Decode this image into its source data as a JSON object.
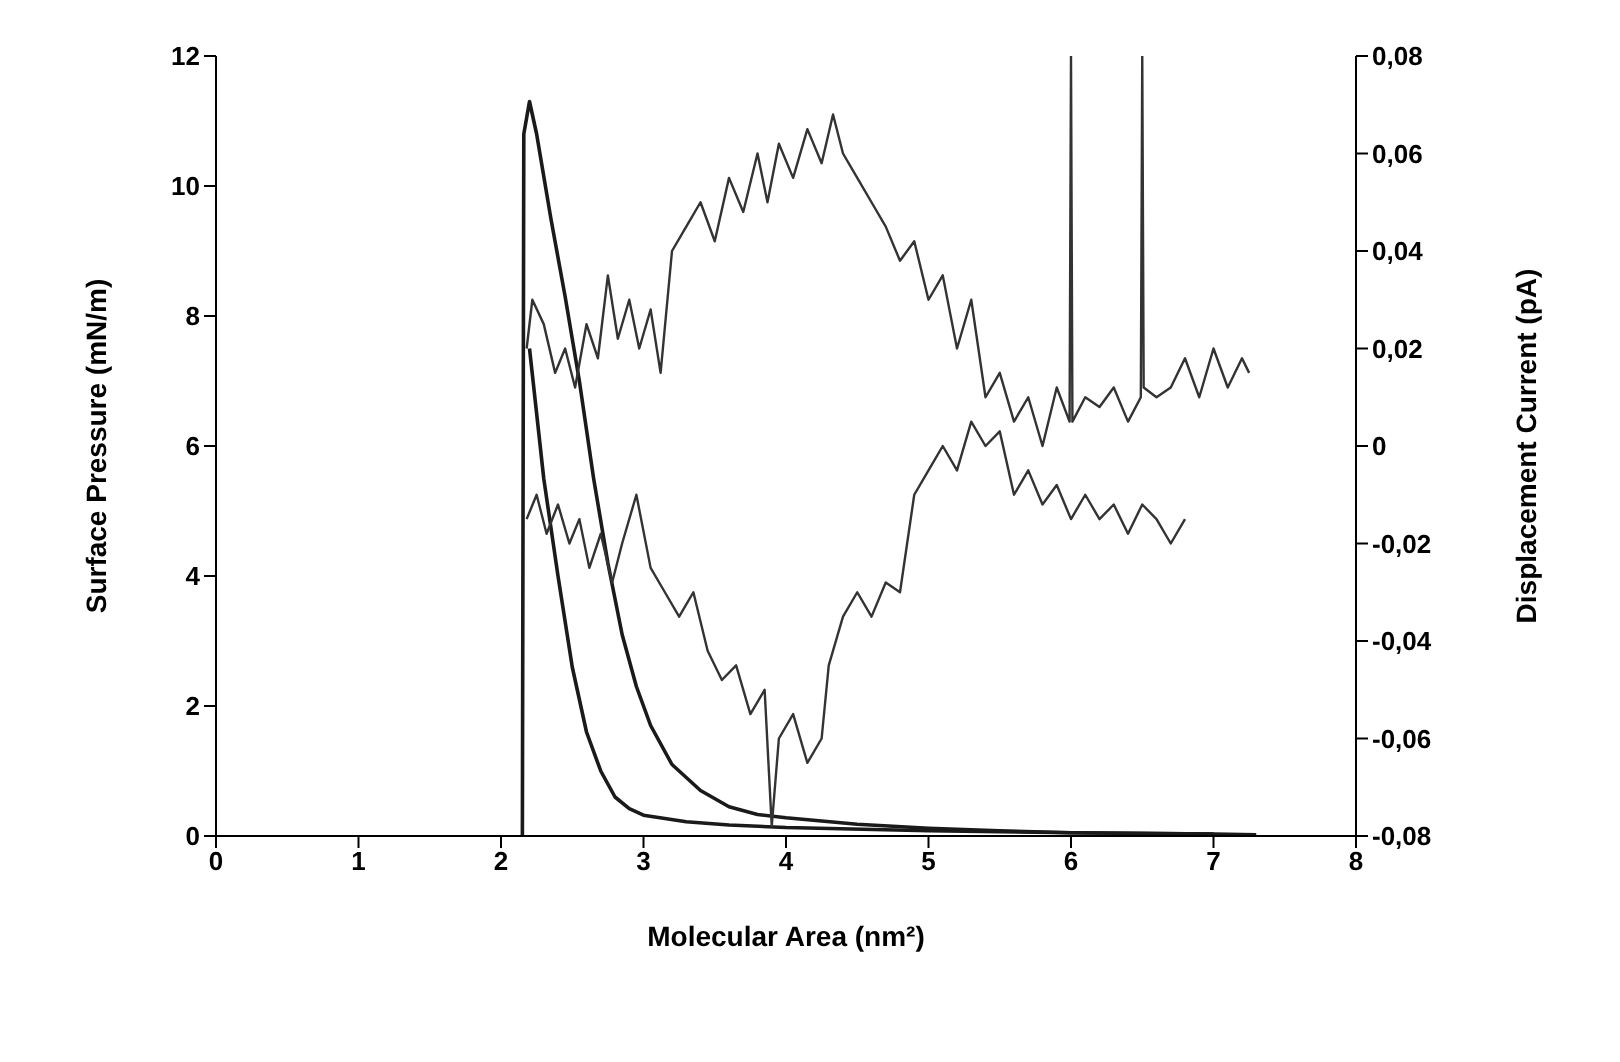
{
  "chart_data": {
    "type": "line",
    "xlabel": "Molecular Area (nm²)",
    "ylabel": "Surface Pressure (mN/m)",
    "y2label": "Displacement Current (pA)",
    "xlim": [
      0,
      8
    ],
    "xticks": [
      0,
      1,
      2,
      3,
      4,
      5,
      6,
      7,
      8
    ],
    "ylim": [
      0,
      12
    ],
    "yticks": [
      0,
      2,
      4,
      6,
      8,
      10,
      12
    ],
    "y2lim": [
      -0.08,
      0.08
    ],
    "y2ticks": [
      {
        "value": -0.08,
        "label": "-0,08"
      },
      {
        "value": -0.06,
        "label": "-0,06"
      },
      {
        "value": -0.04,
        "label": "-0,04"
      },
      {
        "value": -0.02,
        "label": "-0,02"
      },
      {
        "value": 0,
        "label": "0"
      },
      {
        "value": 0.02,
        "label": "0,02"
      },
      {
        "value": 0.04,
        "label": "0,04"
      },
      {
        "value": 0.06,
        "label": "0,06"
      },
      {
        "value": 0.08,
        "label": "0,08"
      }
    ],
    "grid": false,
    "legend": false,
    "marker": "none",
    "line_style": "solid",
    "series": [
      {
        "color": "#1a1a1a",
        "x": [
          2.15,
          2.16,
          2.2,
          2.25,
          2.35,
          2.45,
          2.55,
          2.65,
          2.75,
          2.85,
          2.95,
          3.05,
          3.2,
          3.4,
          3.6,
          3.8,
          4.0,
          4.5,
          5.0,
          5.5,
          6.0,
          7.0,
          7.3
        ],
        "values": [
          0,
          10.8,
          11.3,
          10.8,
          9.5,
          8.3,
          7.0,
          5.5,
          4.2,
          3.1,
          2.3,
          1.7,
          1.1,
          0.7,
          0.45,
          0.33,
          0.28,
          0.18,
          0.12,
          0.08,
          0.05,
          0.03,
          0.02
        ]
      },
      {
        "color": "#1a1a1a",
        "x": [
          2.2,
          2.25,
          2.3,
          2.4,
          2.5,
          2.6,
          2.7,
          2.8,
          2.9,
          3.0,
          3.3,
          3.6,
          4.0,
          5.0,
          6.0,
          7.0
        ],
        "values": [
          7.5,
          6.5,
          5.5,
          4.0,
          2.6,
          1.6,
          1.0,
          0.6,
          0.42,
          0.32,
          0.22,
          0.17,
          0.13,
          0.08,
          0.05,
          0.03
        ]
      },
      {
        "color": "#333333",
        "axis": "y2",
        "x": [
          2.18,
          2.22,
          2.3,
          2.38,
          2.45,
          2.52,
          2.6,
          2.68,
          2.75,
          2.82,
          2.9,
          2.97,
          3.05,
          3.12,
          3.2,
          3.3,
          3.4,
          3.5,
          3.6,
          3.7,
          3.8,
          3.87,
          3.95,
          4.05,
          4.15,
          4.25,
          4.33,
          4.4,
          4.5,
          4.6,
          4.7,
          4.8,
          4.9,
          5.0,
          5.1,
          5.2,
          5.3,
          5.4,
          5.5,
          5.6,
          5.7,
          5.8,
          5.9,
          5.99,
          6.0,
          6.01,
          6.1,
          6.2,
          6.3,
          6.4,
          6.49,
          6.5,
          6.51,
          6.6,
          6.7,
          6.8,
          6.9,
          7.0,
          7.1,
          7.2,
          7.25
        ],
        "values": [
          0.02,
          0.03,
          0.025,
          0.015,
          0.02,
          0.012,
          0.025,
          0.018,
          0.035,
          0.022,
          0.03,
          0.02,
          0.028,
          0.015,
          0.04,
          0.045,
          0.05,
          0.042,
          0.055,
          0.048,
          0.06,
          0.05,
          0.062,
          0.055,
          0.065,
          0.058,
          0.068,
          0.06,
          0.055,
          0.05,
          0.045,
          0.038,
          0.042,
          0.03,
          0.035,
          0.02,
          0.03,
          0.01,
          0.015,
          0.005,
          0.01,
          0.0,
          0.012,
          0.005,
          0.08,
          0.005,
          0.01,
          0.008,
          0.012,
          0.005,
          0.01,
          0.08,
          0.012,
          0.01,
          0.012,
          0.018,
          0.01,
          0.02,
          0.012,
          0.018,
          0.015
        ]
      },
      {
        "color": "#333333",
        "axis": "y2",
        "x": [
          2.18,
          2.25,
          2.32,
          2.4,
          2.48,
          2.55,
          2.62,
          2.7,
          2.78,
          2.85,
          2.95,
          3.05,
          3.15,
          3.25,
          3.35,
          3.45,
          3.55,
          3.65,
          3.75,
          3.85,
          3.9,
          3.95,
          4.05,
          4.15,
          4.25,
          4.3,
          4.4,
          4.5,
          4.6,
          4.7,
          4.8,
          4.9,
          5.0,
          5.1,
          5.2,
          5.3,
          5.4,
          5.5,
          5.6,
          5.7,
          5.8,
          5.9,
          6.0,
          6.1,
          6.2,
          6.3,
          6.4,
          6.5,
          6.6,
          6.7,
          6.8
        ],
        "values": [
          -0.015,
          -0.01,
          -0.018,
          -0.012,
          -0.02,
          -0.015,
          -0.025,
          -0.018,
          -0.028,
          -0.02,
          -0.01,
          -0.025,
          -0.03,
          -0.035,
          -0.03,
          -0.042,
          -0.048,
          -0.045,
          -0.055,
          -0.05,
          -0.078,
          -0.06,
          -0.055,
          -0.065,
          -0.06,
          -0.045,
          -0.035,
          -0.03,
          -0.035,
          -0.028,
          -0.03,
          -0.01,
          -0.005,
          0.0,
          -0.005,
          0.005,
          0.0,
          0.003,
          -0.01,
          -0.005,
          -0.012,
          -0.008,
          -0.015,
          -0.01,
          -0.015,
          -0.012,
          -0.018,
          -0.012,
          -0.015,
          -0.02,
          -0.015
        ]
      }
    ]
  }
}
